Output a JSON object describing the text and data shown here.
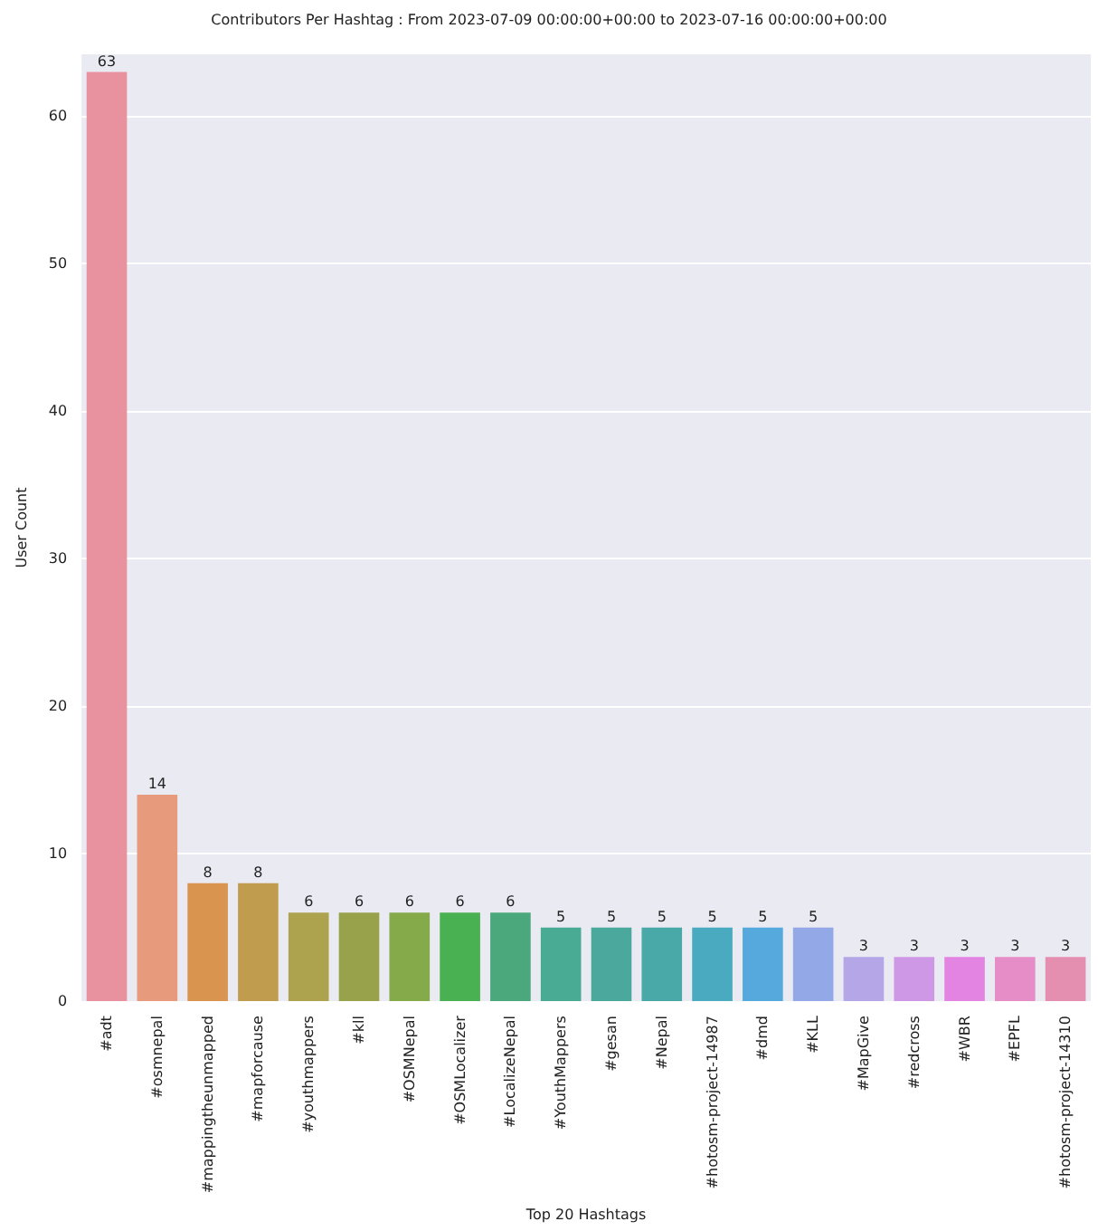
{
  "chart_data": {
    "type": "bar",
    "title": "Contributors Per Hashtag : From 2023-07-09 00:00:00+00:00 to 2023-07-16 00:00:00+00:00",
    "xlabel": "Top 20 Hashtags",
    "ylabel": "User Count",
    "categories": [
      "#adt",
      "#osmnepal",
      "#mappingtheunmapped",
      "#mapforcause",
      "#youthmappers",
      "#kll",
      "#OSMNepal",
      "#OSMLocalizer",
      "#LocalizeNepal",
      "#YouthMappers",
      "#gesan",
      "#Nepal",
      "#hotosm-project-14987",
      "#dmd",
      "#KLL",
      "#MapGive",
      "#redcross",
      "#WBR",
      "#EPFL",
      "#hotosm-project-14310"
    ],
    "values": [
      63,
      14,
      8,
      8,
      6,
      6,
      6,
      6,
      6,
      5,
      5,
      5,
      5,
      5,
      5,
      3,
      3,
      3,
      3,
      3
    ],
    "colors": [
      "#e8919f",
      "#e89a7c",
      "#d99450",
      "#c09c4e",
      "#ada24e",
      "#98a24a",
      "#84aa4a",
      "#4ab152",
      "#4aa87c",
      "#4aab94",
      "#4aa99c",
      "#49a9a8",
      "#4aaabf",
      "#55a9dd",
      "#93a8e6",
      "#b5a6e8",
      "#cf98e6",
      "#e384e3",
      "#e68cc7",
      "#e58fb0"
    ],
    "ylim": [
      0,
      64.2
    ],
    "yticks": [
      0,
      10,
      20,
      30,
      40,
      50,
      60
    ],
    "grid": "y",
    "data_labels": true
  }
}
